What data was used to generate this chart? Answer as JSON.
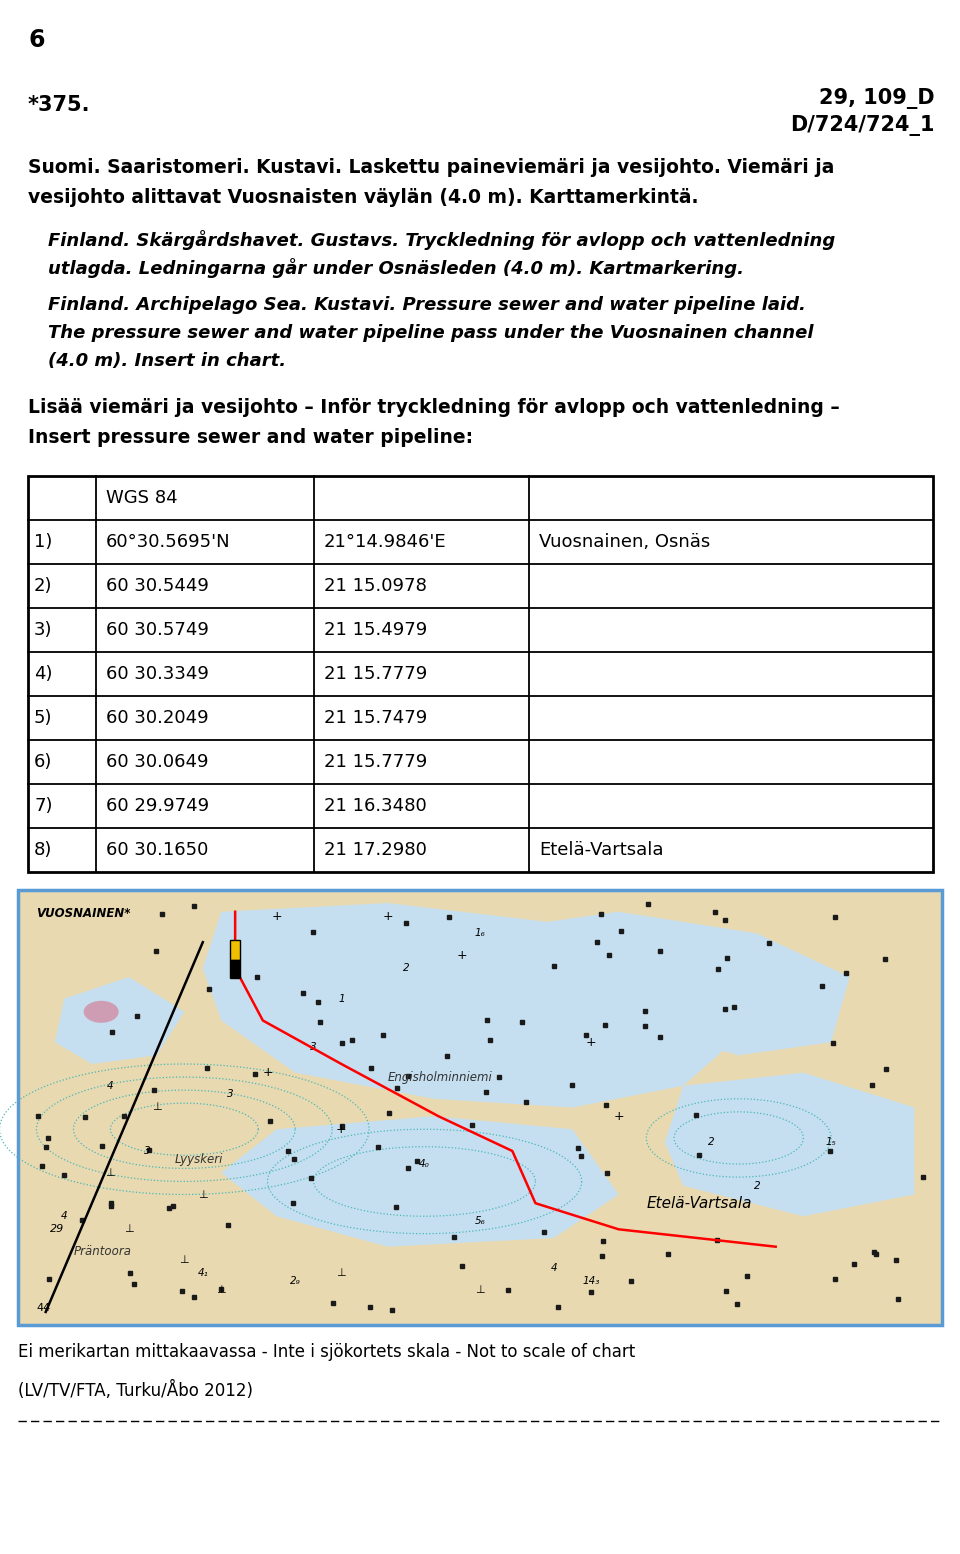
{
  "page_number": "6",
  "top_left_code": "*375.",
  "top_right_line1": "29, 109_D",
  "top_right_line2": "D/724/724_1",
  "para1_lines": [
    "Suomi. Saaristomeri. Kustavi. Laskettu paineviemäri ja vesijohto. Viemäri ja",
    "vesijohto alittavat Vuosnaisten väylän (4.0 m). Karttamerkintä."
  ],
  "para2_lines": [
    "Finland. Skärgårdshavet. Gustavs. Tryckledning för avlopp och vattenledning",
    "utlagda. Ledningarna går under Osnäsleden (4.0 m). Kartmarkering."
  ],
  "para3_lines": [
    "Finland. Archipelago Sea. Kustavi. Pressure sewer and water pipeline laid.",
    "The pressure sewer and water pipeline pass under the Vuosnainen channel",
    "(4.0 m). Insert in chart."
  ],
  "section_header_lines": [
    "Lisää viemäri ja vesijohto – Inför tryckledning för avlopp och vattenledning –",
    "Insert pressure sewer and water pipeline:"
  ],
  "table_header_col2": "WGS 84",
  "table_rows": [
    [
      "1)",
      "60°30.5695'N",
      "21°14.9846'E",
      "Vuosnainen, Osnäs"
    ],
    [
      "2)",
      "60 30.5449",
      "21 15.0978",
      ""
    ],
    [
      "3)",
      "60 30.5749",
      "21 15.4979",
      ""
    ],
    [
      "4)",
      "60 30.3349",
      "21 15.7779",
      ""
    ],
    [
      "5)",
      "60 30.2049",
      "21 15.7479",
      ""
    ],
    [
      "6)",
      "60 30.0649",
      "21 15.7779",
      ""
    ],
    [
      "7)",
      "60 29.9749",
      "21 16.3480",
      ""
    ],
    [
      "8)",
      "60 30.1650",
      "21 17.2980",
      "Etelä-Vartsala"
    ]
  ],
  "caption": "Ei merikartan mittakaavassa - Inte i sjökortets skala - Not to scale of chart",
  "footer": "(LV/TV/FTA, Turku/Åbo 2012)",
  "map_border_color": "#5b9bd5",
  "background_color": "#ffffff",
  "land_color": "#e8d9b0",
  "water_color": "#c5dff0",
  "water_color2": "#aecde0"
}
